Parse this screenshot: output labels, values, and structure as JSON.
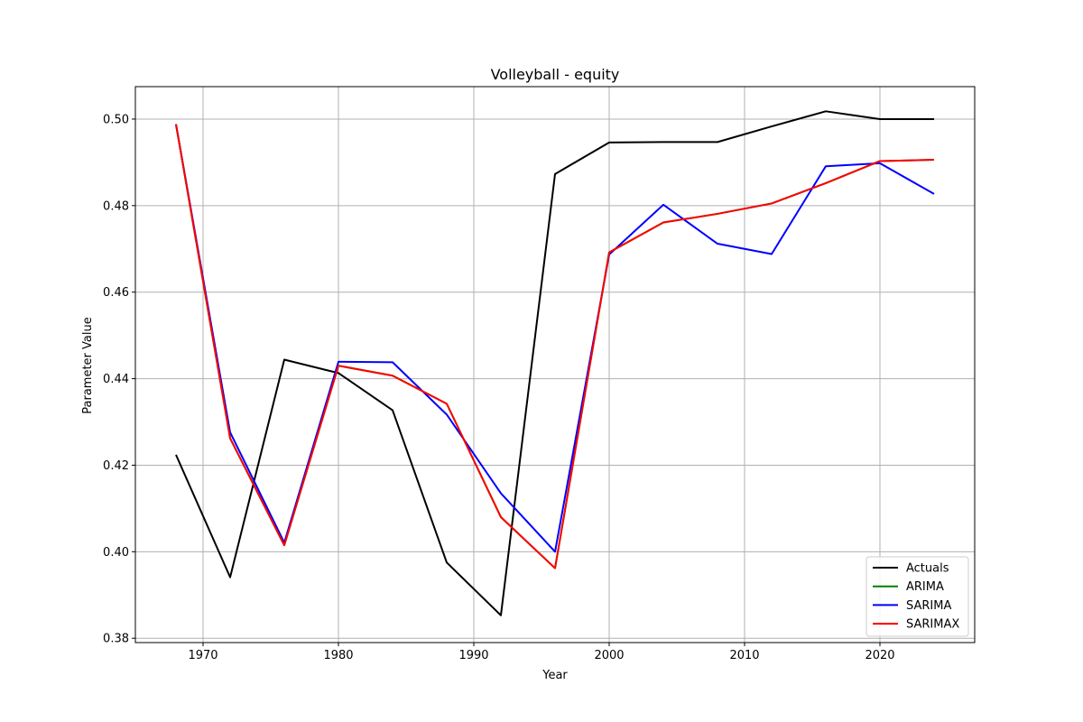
{
  "chart_data": {
    "type": "line",
    "title": "Volleyball - equity",
    "xlabel": "Year",
    "ylabel": "Parameter Value",
    "xlim": [
      1965,
      2027
    ],
    "ylim": [
      0.379,
      0.5075
    ],
    "xticks": [
      1970,
      1980,
      1990,
      2000,
      2010,
      2020
    ],
    "yticks": [
      0.38,
      0.4,
      0.42,
      0.44,
      0.46,
      0.48,
      0.5
    ],
    "ytick_labels": [
      "0.38",
      "0.40",
      "0.42",
      "0.44",
      "0.46",
      "0.48",
      "0.50"
    ],
    "grid": true,
    "legend_position": "lower-right",
    "x": [
      1968,
      1972,
      1976,
      1980,
      1984,
      1988,
      1992,
      1996,
      2000,
      2004,
      2008,
      2012,
      2016,
      2020,
      2024
    ],
    "series": [
      {
        "name": "Actuals",
        "color": "#000000",
        "values": [
          0.4224,
          0.3941,
          0.4444,
          0.4413,
          0.4327,
          0.3975,
          0.3853,
          0.4873,
          0.4946,
          0.4947,
          0.4947,
          0.4983,
          0.5018,
          0.5,
          0.5
        ]
      },
      {
        "name": "ARIMA",
        "color": "#008000",
        "values": [
          0.4988,
          0.4262,
          0.4015,
          0.443,
          0.4407,
          0.4342,
          0.408,
          0.3962,
          0.4692,
          0.4761,
          0.4781,
          0.4805,
          0.4852,
          0.4903,
          0.4906
        ]
      },
      {
        "name": "SARIMA",
        "color": "#0000ff",
        "values": [
          0.4988,
          0.4276,
          0.4021,
          0.4439,
          0.4438,
          0.4317,
          0.4135,
          0.4,
          0.4687,
          0.4802,
          0.4712,
          0.4688,
          0.4891,
          0.4898,
          0.4827
        ]
      },
      {
        "name": "SARIMAX",
        "color": "#ff0000",
        "values": [
          0.4988,
          0.4262,
          0.4015,
          0.443,
          0.4407,
          0.4342,
          0.408,
          0.3962,
          0.4692,
          0.4761,
          0.4781,
          0.4805,
          0.4852,
          0.4903,
          0.4906
        ]
      }
    ]
  }
}
